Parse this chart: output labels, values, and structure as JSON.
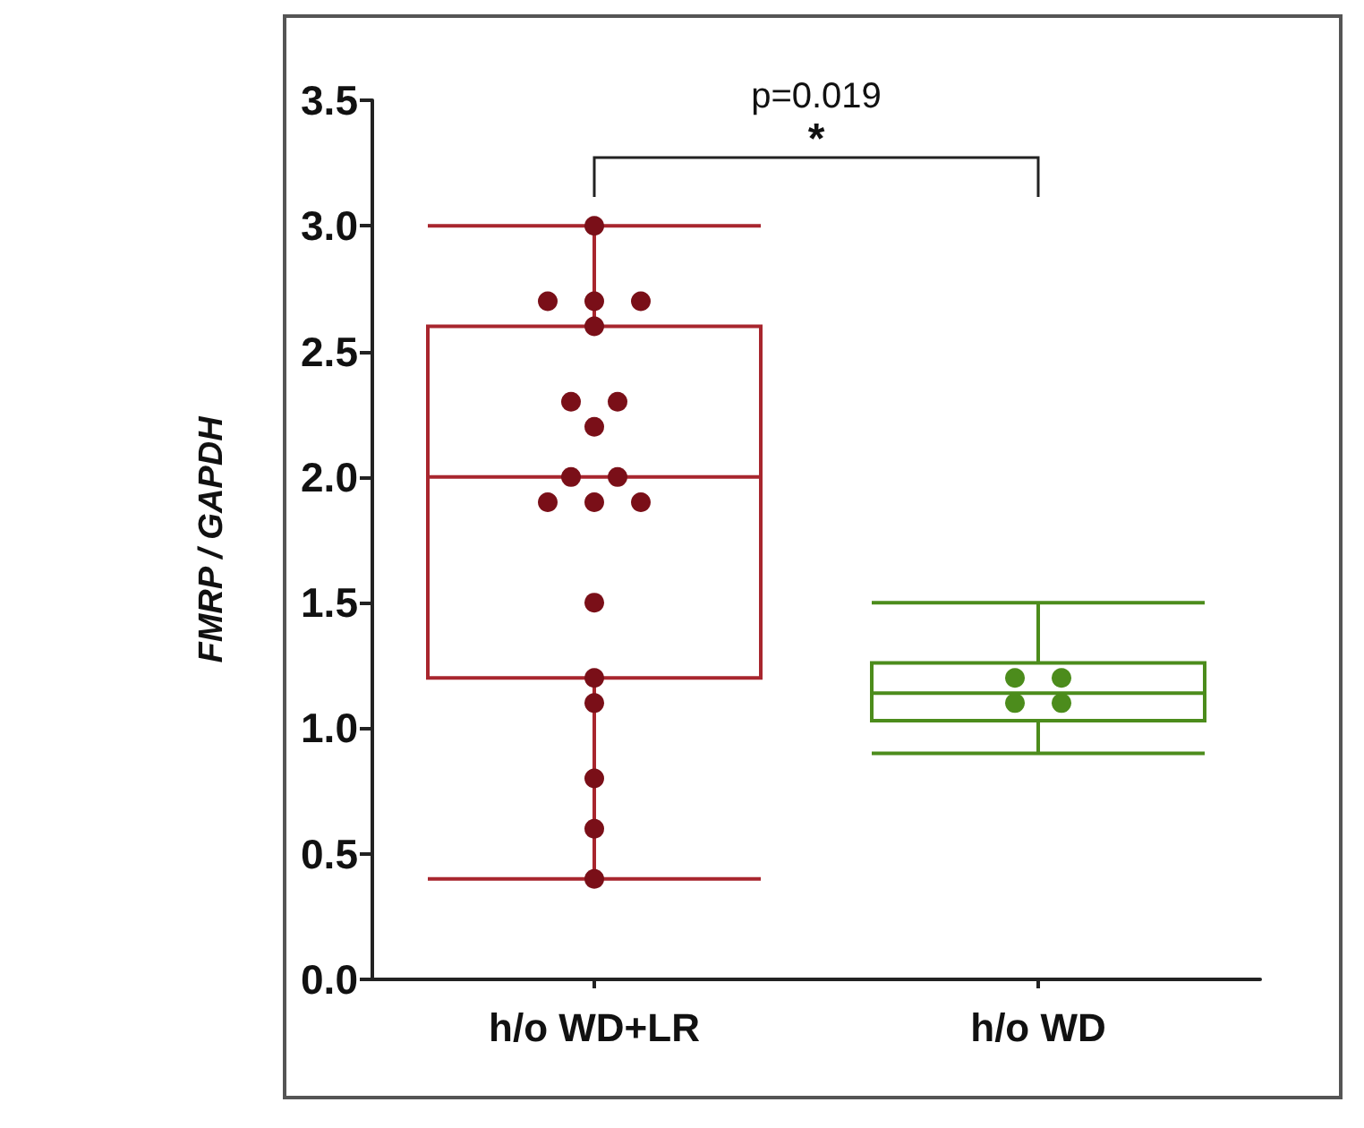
{
  "chart_data": {
    "type": "box",
    "ylabel": "FMRP / GAPDH",
    "categories": [
      "h/o WD+LR",
      "h/o WD"
    ],
    "boxes": [
      {
        "low": 0.4,
        "q1": 1.2,
        "median": 2.0,
        "q3": 2.6,
        "high": 3.0
      },
      {
        "low": 0.9,
        "q1": 1.03,
        "median": 1.14,
        "q3": 1.26,
        "high": 1.5
      }
    ],
    "colors": [
      "#a8262e",
      "#4c8c1c"
    ],
    "series": [
      {
        "type": "scatter",
        "color": "#7a0f18",
        "x": [
          "h/o WD+LR",
          "h/o WD+LR",
          "h/o WD+LR",
          "h/o WD+LR",
          "h/o WD+LR",
          "h/o WD+LR",
          "h/o WD+LR",
          "h/o WD+LR",
          "h/o WD+LR",
          "h/o WD+LR",
          "h/o WD+LR",
          "h/o WD+LR",
          "h/o WD+LR",
          "h/o WD+LR",
          "h/o WD+LR",
          "h/o WD+LR",
          "h/o WD+LR",
          "h/o WD+LR",
          "h/o WD+LR"
        ],
        "values": [
          3.0,
          2.7,
          2.7,
          2.7,
          2.6,
          2.3,
          2.3,
          2.2,
          2.0,
          2.0,
          1.9,
          1.9,
          1.9,
          1.5,
          1.2,
          1.1,
          0.8,
          0.6,
          0.4
        ]
      },
      {
        "type": "scatter",
        "color": "#4c8c1c",
        "x": [
          "h/o WD",
          "h/o WD",
          "h/o WD",
          "h/o WD"
        ],
        "values": [
          1.2,
          1.2,
          1.1,
          1.1
        ]
      }
    ],
    "ylim": [
      0,
      3.5
    ],
    "yticks": [
      {
        "value": 0,
        "label": "0.0"
      },
      {
        "value": 0.5,
        "label": "0.5"
      },
      {
        "value": 1,
        "label": "1.0"
      },
      {
        "value": 1.5,
        "label": "1.5"
      },
      {
        "value": 2,
        "label": "2.0"
      },
      {
        "value": 2.5,
        "label": "2.5"
      },
      {
        "value": 3,
        "label": "3.0"
      },
      {
        "value": 3.5,
        "label": "3.5"
      }
    ],
    "annotations": [
      "p=0.019",
      "*"
    ],
    "grid": false,
    "marker": "circle"
  }
}
